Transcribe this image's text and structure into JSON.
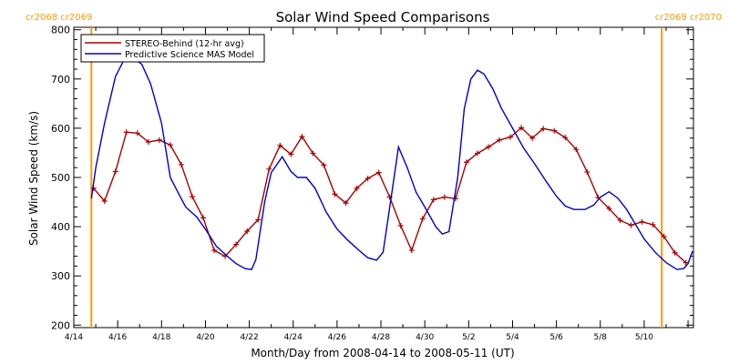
{
  "chart_data": {
    "type": "line",
    "title": "Solar Wind Speed Comparisons",
    "xlabel": "Month/Day from 2008-04-14 to 2008-05-11 (UT)",
    "ylabel": "Solar Wind Speed (km/s)",
    "ylim": [
      195,
      805
    ],
    "xlim_days": [
      0,
      27
    ],
    "x_ticks": [
      {
        "day": 0,
        "label": "4/14"
      },
      {
        "day": 2,
        "label": "4/16"
      },
      {
        "day": 4,
        "label": "4/18"
      },
      {
        "day": 6,
        "label": "4/20"
      },
      {
        "day": 8,
        "label": "4/22"
      },
      {
        "day": 10,
        "label": "4/24"
      },
      {
        "day": 12,
        "label": "4/26"
      },
      {
        "day": 14,
        "label": "4/28"
      },
      {
        "day": 16,
        "label": "4/30"
      },
      {
        "day": 18,
        "label": "5/2"
      },
      {
        "day": 20,
        "label": "5/4"
      },
      {
        "day": 22,
        "label": "5/6"
      },
      {
        "day": 24,
        "label": "5/8"
      },
      {
        "day": 26,
        "label": "5/10"
      }
    ],
    "y_ticks": [
      200,
      300,
      400,
      500,
      600,
      700,
      800
    ],
    "grid": false,
    "legend_position": "top-left",
    "carrington": {
      "lines": [
        {
          "day": 0.8,
          "color": "#ff9900"
        },
        {
          "day": 26.8,
          "color": "#ff9900"
        }
      ],
      "labels_left": "cr2068 cr2069",
      "labels_right": "cr2069 cr2070",
      "color": "#ff9900"
    },
    "series": [
      {
        "name": "STEREO-Behind (12-hr avg)",
        "color": "#aa0000",
        "marker": "plus",
        "points": [
          [
            0.9,
            478
          ],
          [
            1.4,
            452
          ],
          [
            1.9,
            512
          ],
          [
            2.4,
            592
          ],
          [
            2.9,
            590
          ],
          [
            3.4,
            572
          ],
          [
            3.9,
            576
          ],
          [
            4.4,
            566
          ],
          [
            4.9,
            526
          ],
          [
            5.4,
            461
          ],
          [
            5.9,
            418
          ],
          [
            6.4,
            352
          ],
          [
            6.9,
            340
          ],
          [
            7.4,
            364
          ],
          [
            7.9,
            391
          ],
          [
            8.4,
            414
          ],
          [
            8.9,
            517
          ],
          [
            9.4,
            565
          ],
          [
            9.9,
            547
          ],
          [
            10.4,
            583
          ],
          [
            10.9,
            549
          ],
          [
            11.4,
            525
          ],
          [
            11.9,
            466
          ],
          [
            12.4,
            448
          ],
          [
            12.9,
            478
          ],
          [
            13.4,
            498
          ],
          [
            13.9,
            510
          ],
          [
            14.4,
            460
          ],
          [
            14.9,
            402
          ],
          [
            15.4,
            352
          ],
          [
            15.9,
            416
          ],
          [
            16.4,
            455
          ],
          [
            16.9,
            460
          ],
          [
            17.4,
            457
          ],
          [
            17.9,
            531
          ],
          [
            18.4,
            549
          ],
          [
            18.9,
            562
          ],
          [
            19.4,
            576
          ],
          [
            19.9,
            582
          ],
          [
            20.4,
            601
          ],
          [
            20.9,
            580
          ],
          [
            21.4,
            599
          ],
          [
            21.9,
            595
          ],
          [
            22.4,
            581
          ],
          [
            22.9,
            557
          ],
          [
            23.4,
            511
          ],
          [
            23.9,
            459
          ],
          [
            24.4,
            437
          ],
          [
            24.9,
            413
          ],
          [
            25.4,
            403
          ],
          [
            25.9,
            410
          ],
          [
            26.4,
            404
          ],
          [
            26.9,
            380
          ],
          [
            27.4,
            347
          ],
          [
            27.9,
            327
          ]
        ]
      },
      {
        "name": "Predictive Science MAS Model",
        "color": "#0000cc",
        "marker": "none",
        "points": [
          [
            0.8,
            457
          ],
          [
            1.0,
            520
          ],
          [
            1.4,
            610
          ],
          [
            1.9,
            705
          ],
          [
            2.3,
            740
          ],
          [
            2.6,
            746
          ],
          [
            3.1,
            730
          ],
          [
            3.5,
            690
          ],
          [
            4.0,
            610
          ],
          [
            4.4,
            500
          ],
          [
            4.8,
            465
          ],
          [
            5.1,
            440
          ],
          [
            5.6,
            420
          ],
          [
            6.0,
            395
          ],
          [
            6.5,
            360
          ],
          [
            7.0,
            340
          ],
          [
            7.4,
            325
          ],
          [
            7.8,
            315
          ],
          [
            8.1,
            313
          ],
          [
            8.3,
            333
          ],
          [
            8.7,
            450
          ],
          [
            9.0,
            510
          ],
          [
            9.5,
            542
          ],
          [
            9.9,
            512
          ],
          [
            10.2,
            500
          ],
          [
            10.6,
            500
          ],
          [
            11.0,
            478
          ],
          [
            11.5,
            430
          ],
          [
            12.0,
            395
          ],
          [
            12.5,
            372
          ],
          [
            13.0,
            352
          ],
          [
            13.4,
            337
          ],
          [
            13.8,
            332
          ],
          [
            14.1,
            348
          ],
          [
            14.5,
            470
          ],
          [
            14.8,
            562
          ],
          [
            15.2,
            520
          ],
          [
            15.6,
            470
          ],
          [
            16.0,
            440
          ],
          [
            16.5,
            400
          ],
          [
            16.8,
            385
          ],
          [
            17.1,
            390
          ],
          [
            17.5,
            500
          ],
          [
            17.8,
            640
          ],
          [
            18.1,
            700
          ],
          [
            18.4,
            718
          ],
          [
            18.7,
            710
          ],
          [
            19.1,
            680
          ],
          [
            19.5,
            640
          ],
          [
            20.0,
            600
          ],
          [
            20.5,
            560
          ],
          [
            21.0,
            528
          ],
          [
            21.5,
            494
          ],
          [
            22.0,
            462
          ],
          [
            22.4,
            442
          ],
          [
            22.8,
            435
          ],
          [
            23.3,
            435
          ],
          [
            23.7,
            444
          ],
          [
            24.0,
            460
          ],
          [
            24.4,
            471
          ],
          [
            24.8,
            458
          ],
          [
            25.2,
            435
          ],
          [
            25.6,
            405
          ],
          [
            26.0,
            375
          ],
          [
            26.5,
            348
          ],
          [
            27.0,
            327
          ],
          [
            27.5,
            313
          ],
          [
            27.8,
            315
          ],
          [
            28.0,
            325
          ],
          [
            28.2,
            350
          ]
        ]
      }
    ]
  }
}
